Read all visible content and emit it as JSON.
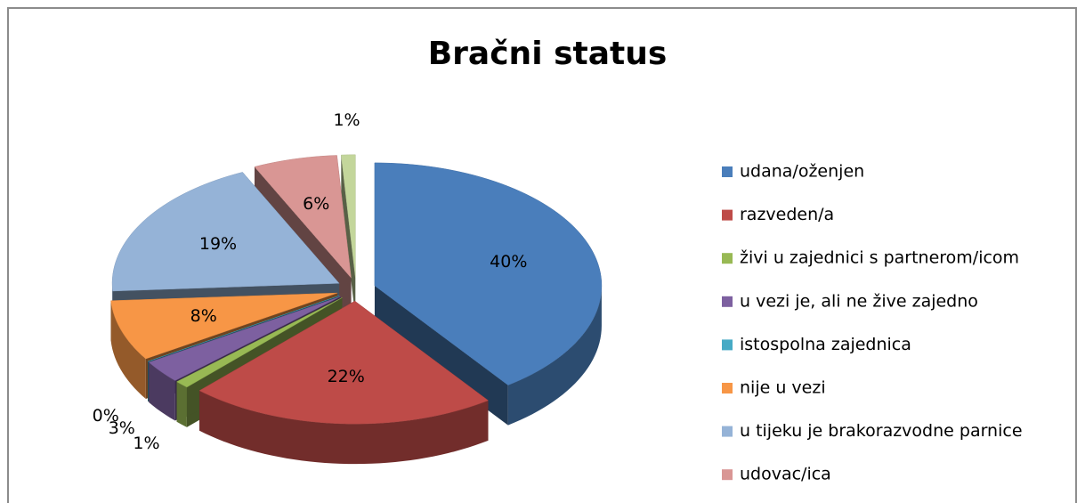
{
  "chart_data": {
    "type": "pie",
    "title": "Bračni status",
    "categories": [
      "udana/oženjen",
      "razveden/a",
      "živi u zajednici s partnerom/icom",
      "u vezi je, ali ne žive zajedno",
      "istospolna zajednica",
      "nije u vezi",
      "u tijeku je brakorazvodne parnice",
      "udovac/ica",
      null
    ],
    "values": [
      40,
      22,
      1,
      3,
      0,
      8,
      19,
      6,
      1
    ],
    "value_labels": [
      "40%",
      "22%",
      "1%",
      "3%",
      "0%",
      "8%",
      "19%",
      "6%",
      "1%"
    ],
    "colors": [
      "#4a7ebb",
      "#be4b48",
      "#98b954",
      "#7d60a0",
      "#46aac5",
      "#f79646",
      "#95b3d7",
      "#d99694",
      "#c3d69b"
    ],
    "legend": "right"
  }
}
